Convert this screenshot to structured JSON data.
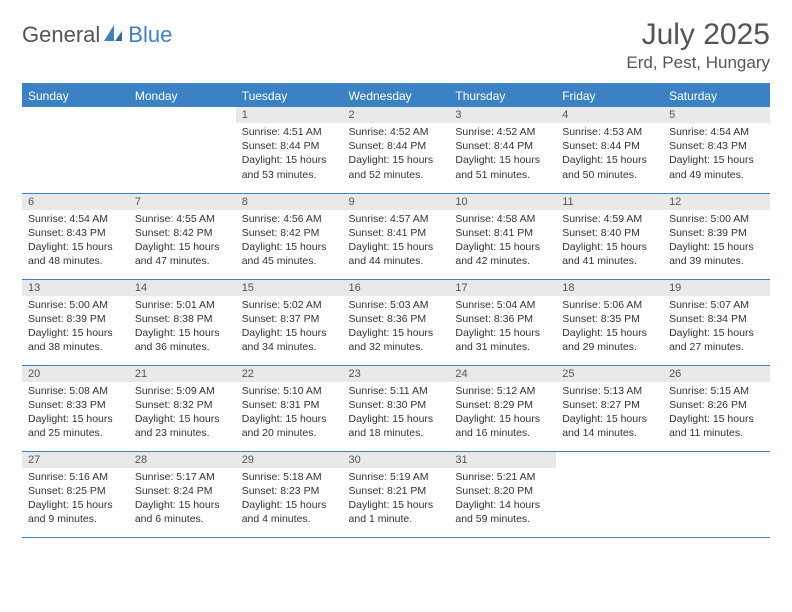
{
  "brand": {
    "name1": "General",
    "name2": "Blue"
  },
  "header": {
    "month": "July 2025",
    "location": "Erd, Pest, Hungary"
  },
  "colors": {
    "accent": "#3b82c4",
    "daynum_bg": "#e9e9e9",
    "text": "#333333",
    "header_text": "#555555",
    "background": "#ffffff"
  },
  "dayNames": [
    "Sunday",
    "Monday",
    "Tuesday",
    "Wednesday",
    "Thursday",
    "Friday",
    "Saturday"
  ],
  "weeks": [
    [
      {
        "n": "",
        "sr": "",
        "ss": "",
        "dl": ""
      },
      {
        "n": "",
        "sr": "",
        "ss": "",
        "dl": ""
      },
      {
        "n": "1",
        "sr": "Sunrise: 4:51 AM",
        "ss": "Sunset: 8:44 PM",
        "dl": "Daylight: 15 hours and 53 minutes."
      },
      {
        "n": "2",
        "sr": "Sunrise: 4:52 AM",
        "ss": "Sunset: 8:44 PM",
        "dl": "Daylight: 15 hours and 52 minutes."
      },
      {
        "n": "3",
        "sr": "Sunrise: 4:52 AM",
        "ss": "Sunset: 8:44 PM",
        "dl": "Daylight: 15 hours and 51 minutes."
      },
      {
        "n": "4",
        "sr": "Sunrise: 4:53 AM",
        "ss": "Sunset: 8:44 PM",
        "dl": "Daylight: 15 hours and 50 minutes."
      },
      {
        "n": "5",
        "sr": "Sunrise: 4:54 AM",
        "ss": "Sunset: 8:43 PM",
        "dl": "Daylight: 15 hours and 49 minutes."
      }
    ],
    [
      {
        "n": "6",
        "sr": "Sunrise: 4:54 AM",
        "ss": "Sunset: 8:43 PM",
        "dl": "Daylight: 15 hours and 48 minutes."
      },
      {
        "n": "7",
        "sr": "Sunrise: 4:55 AM",
        "ss": "Sunset: 8:42 PM",
        "dl": "Daylight: 15 hours and 47 minutes."
      },
      {
        "n": "8",
        "sr": "Sunrise: 4:56 AM",
        "ss": "Sunset: 8:42 PM",
        "dl": "Daylight: 15 hours and 45 minutes."
      },
      {
        "n": "9",
        "sr": "Sunrise: 4:57 AM",
        "ss": "Sunset: 8:41 PM",
        "dl": "Daylight: 15 hours and 44 minutes."
      },
      {
        "n": "10",
        "sr": "Sunrise: 4:58 AM",
        "ss": "Sunset: 8:41 PM",
        "dl": "Daylight: 15 hours and 42 minutes."
      },
      {
        "n": "11",
        "sr": "Sunrise: 4:59 AM",
        "ss": "Sunset: 8:40 PM",
        "dl": "Daylight: 15 hours and 41 minutes."
      },
      {
        "n": "12",
        "sr": "Sunrise: 5:00 AM",
        "ss": "Sunset: 8:39 PM",
        "dl": "Daylight: 15 hours and 39 minutes."
      }
    ],
    [
      {
        "n": "13",
        "sr": "Sunrise: 5:00 AM",
        "ss": "Sunset: 8:39 PM",
        "dl": "Daylight: 15 hours and 38 minutes."
      },
      {
        "n": "14",
        "sr": "Sunrise: 5:01 AM",
        "ss": "Sunset: 8:38 PM",
        "dl": "Daylight: 15 hours and 36 minutes."
      },
      {
        "n": "15",
        "sr": "Sunrise: 5:02 AM",
        "ss": "Sunset: 8:37 PM",
        "dl": "Daylight: 15 hours and 34 minutes."
      },
      {
        "n": "16",
        "sr": "Sunrise: 5:03 AM",
        "ss": "Sunset: 8:36 PM",
        "dl": "Daylight: 15 hours and 32 minutes."
      },
      {
        "n": "17",
        "sr": "Sunrise: 5:04 AM",
        "ss": "Sunset: 8:36 PM",
        "dl": "Daylight: 15 hours and 31 minutes."
      },
      {
        "n": "18",
        "sr": "Sunrise: 5:06 AM",
        "ss": "Sunset: 8:35 PM",
        "dl": "Daylight: 15 hours and 29 minutes."
      },
      {
        "n": "19",
        "sr": "Sunrise: 5:07 AM",
        "ss": "Sunset: 8:34 PM",
        "dl": "Daylight: 15 hours and 27 minutes."
      }
    ],
    [
      {
        "n": "20",
        "sr": "Sunrise: 5:08 AM",
        "ss": "Sunset: 8:33 PM",
        "dl": "Daylight: 15 hours and 25 minutes."
      },
      {
        "n": "21",
        "sr": "Sunrise: 5:09 AM",
        "ss": "Sunset: 8:32 PM",
        "dl": "Daylight: 15 hours and 23 minutes."
      },
      {
        "n": "22",
        "sr": "Sunrise: 5:10 AM",
        "ss": "Sunset: 8:31 PM",
        "dl": "Daylight: 15 hours and 20 minutes."
      },
      {
        "n": "23",
        "sr": "Sunrise: 5:11 AM",
        "ss": "Sunset: 8:30 PM",
        "dl": "Daylight: 15 hours and 18 minutes."
      },
      {
        "n": "24",
        "sr": "Sunrise: 5:12 AM",
        "ss": "Sunset: 8:29 PM",
        "dl": "Daylight: 15 hours and 16 minutes."
      },
      {
        "n": "25",
        "sr": "Sunrise: 5:13 AM",
        "ss": "Sunset: 8:27 PM",
        "dl": "Daylight: 15 hours and 14 minutes."
      },
      {
        "n": "26",
        "sr": "Sunrise: 5:15 AM",
        "ss": "Sunset: 8:26 PM",
        "dl": "Daylight: 15 hours and 11 minutes."
      }
    ],
    [
      {
        "n": "27",
        "sr": "Sunrise: 5:16 AM",
        "ss": "Sunset: 8:25 PM",
        "dl": "Daylight: 15 hours and 9 minutes."
      },
      {
        "n": "28",
        "sr": "Sunrise: 5:17 AM",
        "ss": "Sunset: 8:24 PM",
        "dl": "Daylight: 15 hours and 6 minutes."
      },
      {
        "n": "29",
        "sr": "Sunrise: 5:18 AM",
        "ss": "Sunset: 8:23 PM",
        "dl": "Daylight: 15 hours and 4 minutes."
      },
      {
        "n": "30",
        "sr": "Sunrise: 5:19 AM",
        "ss": "Sunset: 8:21 PM",
        "dl": "Daylight: 15 hours and 1 minute."
      },
      {
        "n": "31",
        "sr": "Sunrise: 5:21 AM",
        "ss": "Sunset: 8:20 PM",
        "dl": "Daylight: 14 hours and 59 minutes."
      },
      {
        "n": "",
        "sr": "",
        "ss": "",
        "dl": ""
      },
      {
        "n": "",
        "sr": "",
        "ss": "",
        "dl": ""
      }
    ]
  ]
}
